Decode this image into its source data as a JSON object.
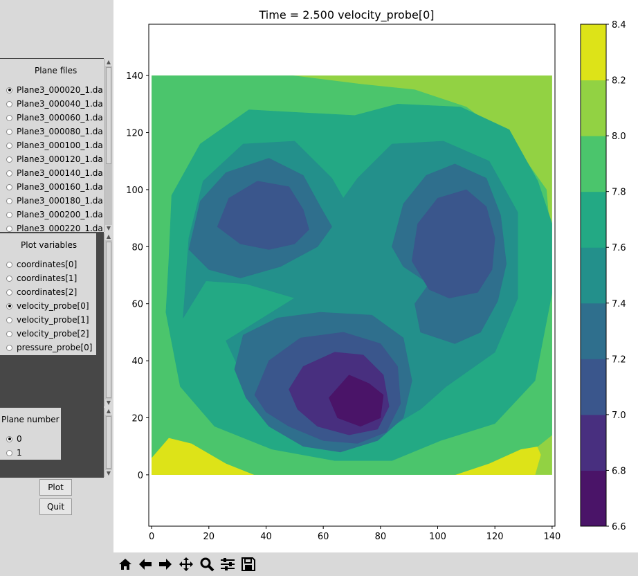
{
  "plane_files": {
    "title": "Plane files",
    "items": [
      {
        "label": "Plane3_000020_1.da",
        "selected": true
      },
      {
        "label": "Plane3_000040_1.da",
        "selected": false
      },
      {
        "label": "Plane3_000060_1.da",
        "selected": false
      },
      {
        "label": "Plane3_000080_1.da",
        "selected": false
      },
      {
        "label": "Plane3_000100_1.da",
        "selected": false
      },
      {
        "label": "Plane3_000120_1.da",
        "selected": false
      },
      {
        "label": "Plane3_000140_1.da",
        "selected": false
      },
      {
        "label": "Plane3_000160_1.da",
        "selected": false
      },
      {
        "label": "Plane3_000180_1.da",
        "selected": false
      },
      {
        "label": "Plane3_000200_1.da",
        "selected": false
      },
      {
        "label": "Plane3_000220_1.da",
        "selected": false
      }
    ]
  },
  "plot_variables": {
    "title": "Plot variables",
    "items": [
      {
        "label": "coordinates[0]",
        "selected": false
      },
      {
        "label": "coordinates[1]",
        "selected": false
      },
      {
        "label": "coordinates[2]",
        "selected": false
      },
      {
        "label": "velocity_probe[0]",
        "selected": true
      },
      {
        "label": "velocity_probe[1]",
        "selected": false
      },
      {
        "label": "velocity_probe[2]",
        "selected": false
      },
      {
        "label": "pressure_probe[0]",
        "selected": false
      }
    ]
  },
  "plane_number": {
    "title": "Plane number",
    "items": [
      {
        "label": "0",
        "selected": true
      },
      {
        "label": "1",
        "selected": false
      }
    ]
  },
  "buttons": {
    "plot": "Plot",
    "quit": "Quit"
  },
  "toolbar": {
    "tools": [
      "home-icon",
      "back-arrow-icon",
      "forward-arrow-icon",
      "pan-move-icon",
      "zoom-magnifier-icon",
      "configure-subplots-icon",
      "save-floppy-icon"
    ]
  },
  "chart_data": {
    "type": "contourf",
    "title": "Time = 2.500 velocity_probe[0]",
    "xlabel": "",
    "ylabel": "",
    "xlim": [
      -1,
      141
    ],
    "ylim": [
      -18,
      158
    ],
    "xticks": [
      "0",
      "20",
      "40",
      "60",
      "80",
      "100",
      "120",
      "140"
    ],
    "yticks": [
      "0",
      "20",
      "40",
      "60",
      "80",
      "100",
      "120",
      "140"
    ],
    "colorbar": {
      "levels": [
        6.6,
        6.8,
        7.0,
        7.2,
        7.4,
        7.6,
        7.8,
        8.0,
        8.2,
        8.4
      ],
      "tick_labels": [
        "6.6",
        "6.8",
        "7.0",
        "7.2",
        "7.4",
        "7.6",
        "7.8",
        "8.0",
        "8.2",
        "8.4"
      ],
      "colors": [
        "#440154",
        "#472d7b",
        "#3b528b",
        "#2c728e",
        "#21918c",
        "#28ae80",
        "#5ec962",
        "#addc30",
        "#fde725"
      ],
      "colors_as_rendered": [
        "#4a1468",
        "#482f7f",
        "#3a568c",
        "#2f6f8d",
        "#23908b",
        "#23a984",
        "#4bc56c",
        "#92d243",
        "#dde318"
      ]
    },
    "data_region": {
      "x": [
        0,
        140
      ],
      "y": [
        0,
        140
      ]
    },
    "features": [
      {
        "kind": "minimum",
        "x": 72,
        "y": 27,
        "value_range": [
          6.6,
          6.8
        ]
      },
      {
        "kind": "local_minimum",
        "x": 33,
        "y": 88,
        "value_range": [
          7.0,
          7.2
        ]
      },
      {
        "kind": "local_minimum",
        "x": 104,
        "y": 86,
        "value_range": [
          7.0,
          7.2
        ]
      },
      {
        "kind": "maximum",
        "x": 5,
        "y": 5,
        "value_range": [
          8.2,
          8.4
        ]
      },
      {
        "kind": "maximum",
        "x": 128,
        "y": 5,
        "value_range": [
          8.2,
          8.4
        ]
      }
    ]
  }
}
